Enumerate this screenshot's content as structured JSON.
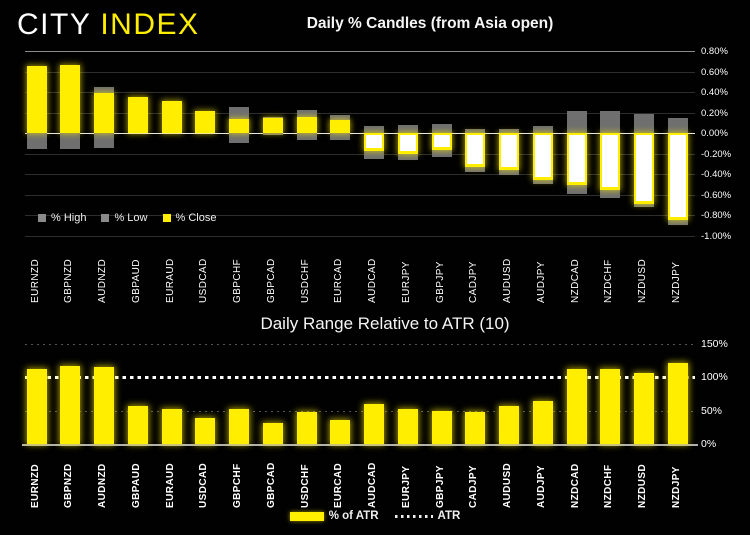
{
  "brand": {
    "city": "CITY",
    "index": "INDEX"
  },
  "colors": {
    "background": "#000000",
    "yellow": "#ffee00",
    "gray_series": "#6f6f6f",
    "white": "#ffffff"
  },
  "chart_data": [
    {
      "type": "bar",
      "subtype": "open-high-low-close candles as overlapped bars from 0",
      "title": "Daily % Candles (from Asia open)",
      "categories": [
        "EURNZD",
        "GBPNZD",
        "AUDNZD",
        "GBPAUD",
        "EURAUD",
        "USDCAD",
        "GBPCHF",
        "GBPCAD",
        "USDCHF",
        "EURCAD",
        "AUDCAD",
        "EURJPY",
        "GBPJPY",
        "CADJPY",
        "AUDUSD",
        "AUDJPY",
        "NZDCAD",
        "NZDCHF",
        "NZDUSD",
        "NZDJPY"
      ],
      "series": [
        {
          "name": "% High",
          "color": "#6f6f6f",
          "values": [
            0.65,
            0.66,
            0.45,
            0.35,
            0.31,
            0.21,
            0.25,
            0.16,
            0.22,
            0.18,
            0.07,
            0.08,
            0.09,
            0.04,
            0.04,
            0.07,
            0.21,
            0.21,
            0.19,
            0.15
          ]
        },
        {
          "name": "% Low",
          "color": "#6f6f6f",
          "values": [
            -0.16,
            -0.16,
            -0.15,
            0.0,
            0.0,
            0.0,
            -0.1,
            -0.02,
            -0.07,
            -0.07,
            -0.25,
            -0.26,
            -0.23,
            -0.38,
            -0.41,
            -0.5,
            -0.6,
            -0.63,
            -0.72,
            -0.9
          ]
        },
        {
          "name": "% Close",
          "color": "#ffee00",
          "values": [
            0.65,
            0.66,
            0.39,
            0.35,
            0.31,
            0.21,
            0.14,
            0.15,
            0.16,
            0.13,
            -0.18,
            -0.2,
            -0.17,
            -0.33,
            -0.36,
            -0.46,
            -0.51,
            -0.56,
            -0.69,
            -0.85
          ]
        }
      ],
      "ylim": [
        -1.0,
        0.8
      ],
      "yticks": [
        0.8,
        0.6,
        0.4,
        0.2,
        0.0,
        -0.2,
        -0.4,
        -0.6,
        -0.8,
        -1.0
      ],
      "ytick_labels": [
        "0.80%",
        "0.60%",
        "0.40%",
        "0.20%",
        "0.00%",
        "-0.20%",
        "-0.40%",
        "-0.60%",
        "-0.80%",
        "-1.00%"
      ],
      "axis_side": "right",
      "grid": true,
      "legend_position": "bottom-left"
    },
    {
      "type": "bar",
      "title": "Daily Range Relative to ATR (10)",
      "categories": [
        "EURNZD",
        "GBPNZD",
        "AUDNZD",
        "GBPAUD",
        "EURAUD",
        "USDCAD",
        "GBPCHF",
        "GBPCAD",
        "USDCHF",
        "EURCAD",
        "AUDCAD",
        "EURJPY",
        "GBPJPY",
        "CADJPY",
        "AUDUSD",
        "AUDJPY",
        "NZDCAD",
        "NZDCHF",
        "NZDUSD",
        "NZDJPY"
      ],
      "series": [
        {
          "name": "% of ATR",
          "color": "#ffee00",
          "values": [
            112,
            117,
            115,
            57,
            52,
            39,
            52,
            31,
            48,
            36,
            60,
            52,
            50,
            48,
            57,
            65,
            113,
            112,
            107,
            121
          ]
        }
      ],
      "reference_line": {
        "label": "ATR",
        "value": 100,
        "style": "dotted-white"
      },
      "ylim": [
        0,
        150
      ],
      "yticks": [
        150,
        100,
        50,
        0
      ],
      "ytick_labels": [
        "150%",
        "100%",
        "50%",
        "0%"
      ],
      "axis_side": "right",
      "grid": "dotted",
      "legend_position": "bottom-center"
    }
  ]
}
